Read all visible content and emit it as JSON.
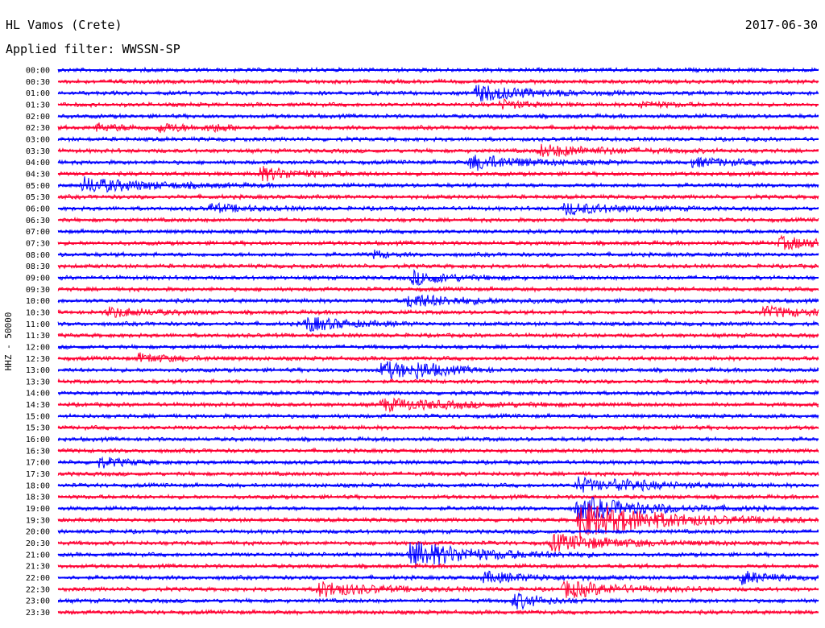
{
  "header": {
    "station": "HL Vamos (Crete)",
    "date": "2017-06-30",
    "filter": "Applied filter: WWSSN-SP"
  },
  "chart_data": {
    "type": "line",
    "ylabel": "HHZ - 50000",
    "colors": {
      "odd_rows": "#0000ff",
      "even_rows": "#ff0033",
      "baseline": "#ffffff"
    },
    "grid": false,
    "rows": [
      "00:00",
      "00:30",
      "01:00",
      "01:30",
      "02:00",
      "02:30",
      "03:00",
      "03:30",
      "04:00",
      "04:30",
      "05:00",
      "05:30",
      "06:00",
      "06:30",
      "07:00",
      "07:30",
      "08:00",
      "08:30",
      "09:00",
      "09:30",
      "10:00",
      "10:30",
      "11:00",
      "11:30",
      "12:00",
      "12:30",
      "13:00",
      "13:30",
      "14:00",
      "14:30",
      "15:00",
      "15:30",
      "16:00",
      "16:30",
      "17:00",
      "17:30",
      "18:00",
      "18:30",
      "19:00",
      "19:30",
      "20:00",
      "20:30",
      "21:00",
      "21:30",
      "22:00",
      "22:30",
      "23:00",
      "23:30"
    ],
    "row_minutes": 30,
    "events": [
      {
        "row": 2,
        "minute": 16.5,
        "amp": 10,
        "dur": 2.0
      },
      {
        "row": 3,
        "minute": 17.5,
        "amp": 5,
        "dur": 1.0
      },
      {
        "row": 3,
        "minute": 23.0,
        "amp": 4,
        "dur": 1.0
      },
      {
        "row": 5,
        "minute": 1.5,
        "amp": 4,
        "dur": 1.5
      },
      {
        "row": 5,
        "minute": 4.0,
        "amp": 5,
        "dur": 1.0
      },
      {
        "row": 5,
        "minute": 6.0,
        "amp": 4,
        "dur": 1.0
      },
      {
        "row": 7,
        "minute": 19.0,
        "amp": 7,
        "dur": 2.5
      },
      {
        "row": 8,
        "minute": 16.3,
        "amp": 9,
        "dur": 2.0
      },
      {
        "row": 8,
        "minute": 25.0,
        "amp": 5,
        "dur": 2.0
      },
      {
        "row": 9,
        "minute": 8.0,
        "amp": 8,
        "dur": 1.5
      },
      {
        "row": 10,
        "minute": 1.0,
        "amp": 9,
        "dur": 2.5
      },
      {
        "row": 12,
        "minute": 6.0,
        "amp": 5,
        "dur": 1.5
      },
      {
        "row": 12,
        "minute": 20.0,
        "amp": 7,
        "dur": 2.0
      },
      {
        "row": 15,
        "minute": 28.5,
        "amp": 7,
        "dur": 2.0
      },
      {
        "row": 16,
        "minute": 12.5,
        "amp": 5,
        "dur": 0.5
      },
      {
        "row": 18,
        "minute": 14.0,
        "amp": 8,
        "dur": 1.5
      },
      {
        "row": 20,
        "minute": 13.8,
        "amp": 8,
        "dur": 2.0
      },
      {
        "row": 21,
        "minute": 2.0,
        "amp": 6,
        "dur": 1.5
      },
      {
        "row": 21,
        "minute": 27.8,
        "amp": 6,
        "dur": 2.0
      },
      {
        "row": 22,
        "minute": 9.8,
        "amp": 9,
        "dur": 1.5
      },
      {
        "row": 25,
        "minute": 3.2,
        "amp": 5,
        "dur": 1.5
      },
      {
        "row": 26,
        "minute": 12.8,
        "amp": 11,
        "dur": 1.5
      },
      {
        "row": 26,
        "minute": 14.2,
        "amp": 6,
        "dur": 1.0
      },
      {
        "row": 29,
        "minute": 12.8,
        "amp": 7,
        "dur": 3.0
      },
      {
        "row": 34,
        "minute": 1.6,
        "amp": 6,
        "dur": 1.0
      },
      {
        "row": 36,
        "minute": 20.5,
        "amp": 10,
        "dur": 1.0
      },
      {
        "row": 36,
        "minute": 22.0,
        "amp": 6,
        "dur": 2.0
      },
      {
        "row": 38,
        "minute": 20.5,
        "amp": 14,
        "dur": 2.5
      },
      {
        "row": 39,
        "minute": 20.6,
        "amp": 22,
        "dur": 3.0
      },
      {
        "row": 41,
        "minute": 19.5,
        "amp": 10,
        "dur": 2.5
      },
      {
        "row": 42,
        "minute": 13.9,
        "amp": 16,
        "dur": 2.5
      },
      {
        "row": 44,
        "minute": 16.8,
        "amp": 6,
        "dur": 2.0
      },
      {
        "row": 44,
        "minute": 27.0,
        "amp": 8,
        "dur": 1.0
      },
      {
        "row": 45,
        "minute": 10.3,
        "amp": 9,
        "dur": 2.0
      },
      {
        "row": 45,
        "minute": 20.0,
        "amp": 10,
        "dur": 2.0
      },
      {
        "row": 46,
        "minute": 18.0,
        "amp": 10,
        "dur": 1.0
      }
    ]
  }
}
